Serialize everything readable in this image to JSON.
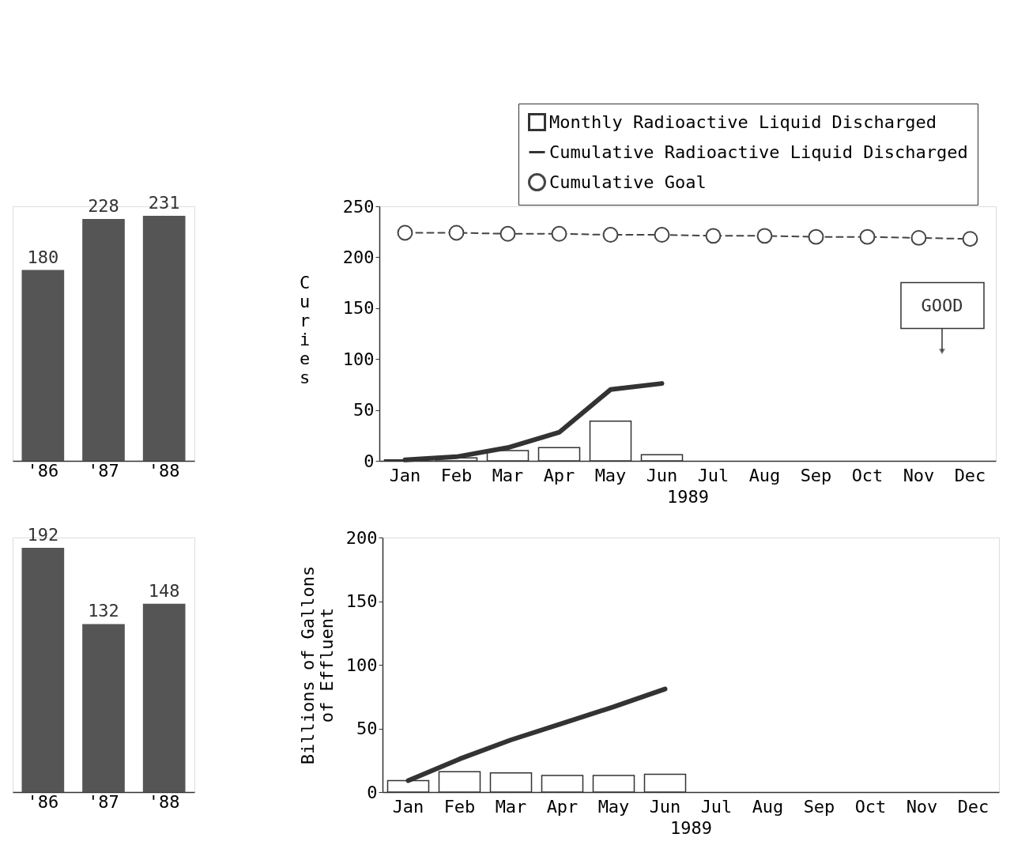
{
  "chart_data": [
    {
      "type": "bar",
      "categories": [
        "'86",
        "'87",
        "'88"
      ],
      "values": [
        180,
        228,
        231
      ],
      "color": "#555555",
      "data_labels": true
    },
    {
      "type": "bar",
      "ylabel": "Curies",
      "xlabel": "1989",
      "categories": [
        "Jan",
        "Feb",
        "Mar",
        "Apr",
        "May",
        "Jun",
        "Jul",
        "Aug",
        "Sep",
        "Oct",
        "Nov",
        "Dec"
      ],
      "ylim": [
        0,
        250
      ],
      "yticks": [
        0,
        50,
        100,
        150,
        200,
        250
      ],
      "grid": false,
      "legend": "top right",
      "annotations": [
        "GOOD"
      ],
      "series": [
        {
          "name": "Monthly Radioactive Liquid Discharged",
          "type": "bar",
          "color": "#333333",
          "values": [
            1,
            3,
            10,
            13,
            39,
            6,
            null,
            null,
            null,
            null,
            null,
            null
          ]
        },
        {
          "name": "Cumulative Radioactive Liquid Discharged",
          "type": "line",
          "color": "#333333",
          "marker": "none",
          "line_style": "solid",
          "values": [
            1,
            4,
            13,
            28,
            70,
            76,
            null,
            null,
            null,
            null,
            null,
            null
          ]
        },
        {
          "name": "Cumulative Goal",
          "type": "line",
          "color": "#444444",
          "marker": "circle",
          "line_style": "dashed",
          "values": [
            224,
            224,
            223,
            223,
            222,
            222,
            221,
            221,
            220,
            220,
            219,
            218
          ]
        }
      ]
    },
    {
      "type": "bar",
      "categories": [
        "'86",
        "'87",
        "'88"
      ],
      "values": [
        192,
        132,
        148
      ],
      "color": "#555555",
      "data_labels": true
    },
    {
      "type": "bar",
      "ylabel": "Billions of Gallons of Effluent",
      "xlabel": "1989",
      "categories": [
        "Jan",
        "Feb",
        "Mar",
        "Apr",
        "May",
        "Jun",
        "Jul",
        "Aug",
        "Sep",
        "Oct",
        "Nov",
        "Dec"
      ],
      "ylim": [
        0,
        200
      ],
      "yticks": [
        0,
        50,
        100,
        150,
        200
      ],
      "grid": false,
      "legend": false,
      "series": [
        {
          "type": "bar",
          "color": "#333333",
          "values": [
            9,
            16,
            15,
            13,
            13,
            14,
            null,
            null,
            null,
            null,
            null,
            null
          ]
        },
        {
          "type": "line",
          "color": "#333333",
          "marker": "none",
          "line_style": "solid",
          "values": [
            9,
            26,
            41,
            54,
            67,
            81,
            null,
            null,
            null,
            null,
            null,
            null
          ]
        }
      ]
    }
  ]
}
